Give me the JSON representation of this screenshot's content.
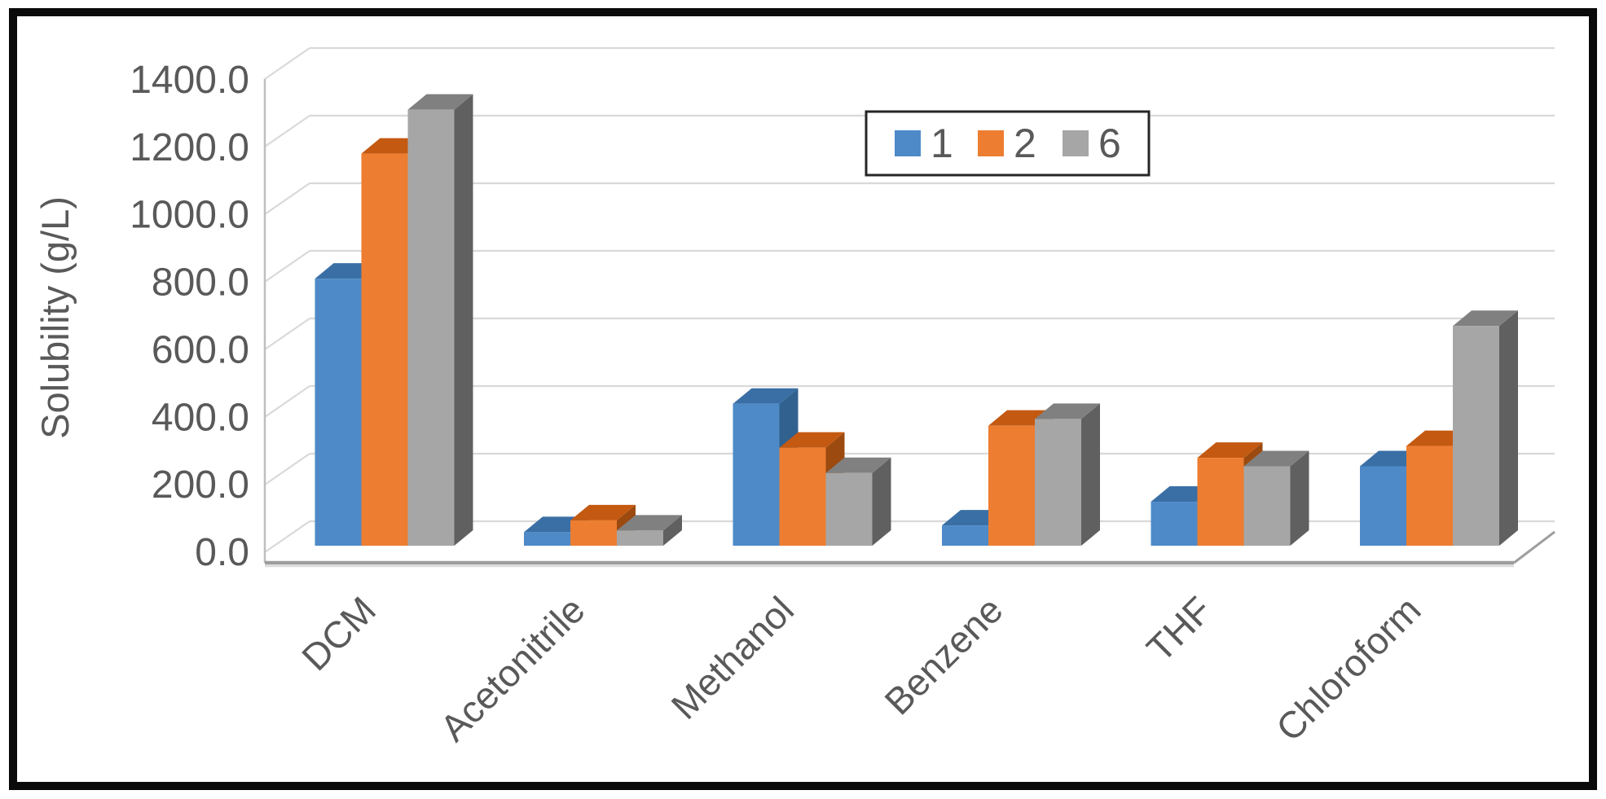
{
  "chart_data": {
    "type": "bar",
    "variant": "3d-clustered-column",
    "title": "",
    "xlabel": "",
    "ylabel": "Solubility (g/L)",
    "categories": [
      "DCM",
      "Acetonitrile",
      "Methanol",
      "Benzene",
      "THF",
      "Chloroform"
    ],
    "series": [
      {
        "name": "1",
        "color": "#4E8AC8",
        "top_color": "#3A6FA5",
        "side_color": "#31618F",
        "values": [
          790,
          40,
          420,
          60,
          130,
          235
        ]
      },
      {
        "name": "2",
        "color": "#ED7D31",
        "top_color": "#C45911",
        "side_color": "#9C4A0F",
        "values": [
          1160,
          75,
          290,
          355,
          260,
          295
        ]
      },
      {
        "name": "6",
        "color": "#A6A6A6",
        "top_color": "#808080",
        "side_color": "#606060",
        "values": [
          1290,
          45,
          215,
          375,
          235,
          650
        ]
      }
    ],
    "ylim": [
      0,
      1400
    ],
    "ytick_step": 200,
    "ytick_labels": [
      "0.0",
      "200.0",
      "400.0",
      "600.0",
      "800.0",
      "1000.0",
      "1200.0",
      "1400.0"
    ],
    "grid": true,
    "legend": {
      "position": "inside-top-right",
      "entries": [
        "1",
        "2",
        "6"
      ]
    }
  },
  "style_tokens": {
    "grid_color": "#D9D9D9",
    "axis_line_color": "#BFBFBF",
    "floor_line_color": "#9E9E9E",
    "tick_text_color": "#595959",
    "frame_border_color": "#0A0A0A",
    "legend_border_color": "#262626",
    "background_color": "#FFFFFF"
  }
}
